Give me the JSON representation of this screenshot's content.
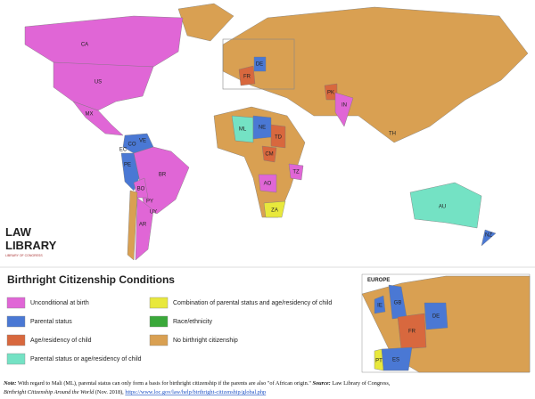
{
  "map_labels": [
    "CA",
    "US",
    "MX",
    "VE",
    "CO",
    "EC",
    "PE",
    "BR",
    "BO",
    "PY",
    "UY",
    "AR",
    "FR",
    "DE",
    "ML",
    "NE",
    "TD",
    "CM",
    "AO",
    "TZ",
    "ZA",
    "PK",
    "IN",
    "TH",
    "AU",
    "NZ"
  ],
  "logo": {
    "line1": "LAW",
    "line2": "LIBRARY",
    "line3": "LIBRARY OF CONGRESS"
  },
  "legend": {
    "title": "Birthright Citizenship Conditions",
    "items": [
      {
        "label": "Unconditional at birth",
        "color": "#e066d6"
      },
      {
        "label": "Parental status",
        "color": "#4a78d4"
      },
      {
        "label": "Age/residency of child",
        "color": "#d8683e"
      },
      {
        "label": "Parental status or age/residency of child",
        "color": "#74e2c4"
      },
      {
        "label": "Combination of parental status and age/residency of child",
        "color": "#e8e83c"
      },
      {
        "label": "Race/ethnicity",
        "color": "#3aa83a"
      },
      {
        "label": "No birthright citizenship",
        "color": "#d9a052"
      }
    ]
  },
  "inset": {
    "title": "EUROPE",
    "labels": [
      "IE",
      "GB",
      "DE",
      "FR",
      "ES",
      "PT"
    ]
  },
  "note": {
    "note_label": "Note:",
    "note_text": "With regard to Mali (ML), parental status can only form a basis for birthright citizenship if the parents are also \"of African origin.\"",
    "source_label": "Source:",
    "source_text": "Law Library of Congress,",
    "source_title": "Birthright Citizenship Around the World",
    "source_date": "(Nov. 2018),",
    "url": "https://www.loc.gov/law/help/birthright-citizenship/global.php"
  }
}
